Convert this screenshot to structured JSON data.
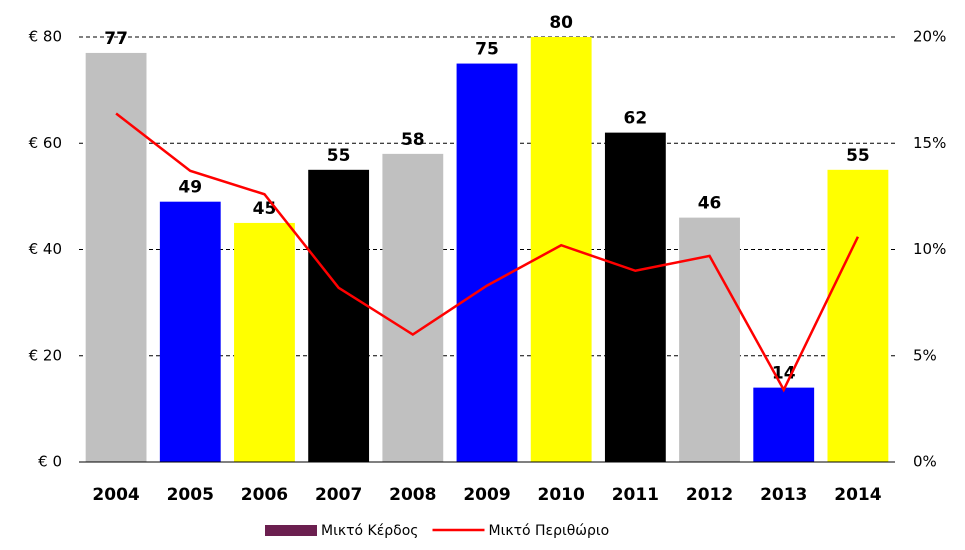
{
  "chart_data": {
    "type": "bar-line",
    "categories": [
      "2004",
      "2005",
      "2006",
      "2007",
      "2008",
      "2009",
      "2010",
      "2011",
      "2012",
      "2013",
      "2014"
    ],
    "series": [
      {
        "name": "Μικτό Κέρδος",
        "type": "bar",
        "color": "#6b1f4f",
        "colors": [
          "#c0c0c0",
          "#0000ff",
          "#ffff00",
          "#000000",
          "#c0c0c0",
          "#0000ff",
          "#ffff00",
          "#000000",
          "#c0c0c0",
          "#0000ff",
          "#ffff00"
        ],
        "values": [
          77,
          49,
          45,
          55,
          58,
          75,
          80,
          62,
          46,
          14,
          55
        ]
      },
      {
        "name": "Μικτό Περιθώριο",
        "type": "line",
        "color": "#ff0000",
        "axis": "y2",
        "values": [
          16.4,
          13.7,
          12.6,
          8.2,
          6.0,
          8.3,
          10.2,
          9.0,
          9.7,
          3.4,
          10.6
        ]
      }
    ],
    "ylim": [
      0,
      80
    ],
    "yticks": [
      {
        "value": 0,
        "label": "€ 0"
      },
      {
        "value": 20,
        "label": "€ 20"
      },
      {
        "value": 40,
        "label": "€ 40"
      },
      {
        "value": 60,
        "label": "€ 60"
      },
      {
        "value": 80,
        "label": "€ 80"
      }
    ],
    "y2lim": [
      0,
      20
    ],
    "y2ticks": [
      {
        "value": 0,
        "label": "0%"
      },
      {
        "value": 5,
        "label": "5%"
      },
      {
        "value": 10,
        "label": "10%"
      },
      {
        "value": 15,
        "label": "15%"
      },
      {
        "value": 20,
        "label": "20%"
      }
    ],
    "grid": true,
    "legend": "bottom"
  }
}
